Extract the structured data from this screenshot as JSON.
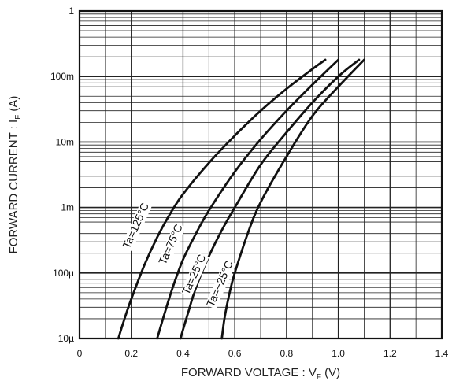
{
  "chart_data": {
    "type": "line",
    "title": "",
    "xlabel": "FORWARD VOLTAGE : V",
    "xlabel_sub": "F",
    "xlabel_unit": " (V)",
    "ylabel": "FORWARD CURRENT : I",
    "ylabel_sub": "F",
    "ylabel_unit": " (A)",
    "xlim": [
      0,
      1.4
    ],
    "ylim": [
      1e-05,
      1
    ],
    "yscale": "log",
    "grid": true,
    "x_ticks": [
      {
        "value": 0,
        "label": "0"
      },
      {
        "value": 0.2,
        "label": "0.2"
      },
      {
        "value": 0.4,
        "label": "0.4"
      },
      {
        "value": 0.6,
        "label": "0.6"
      },
      {
        "value": 0.8,
        "label": "0.8"
      },
      {
        "value": 1.0,
        "label": "1.0"
      },
      {
        "value": 1.2,
        "label": "1.2"
      },
      {
        "value": 1.4,
        "label": "1.4"
      }
    ],
    "y_ticks": [
      {
        "value": 1e-05,
        "label": "10µ"
      },
      {
        "value": 0.0001,
        "label": "100µ"
      },
      {
        "value": 0.001,
        "label": "1m"
      },
      {
        "value": 0.01,
        "label": "10m"
      },
      {
        "value": 0.1,
        "label": "100m"
      },
      {
        "value": 1,
        "label": "1"
      }
    ],
    "series": [
      {
        "name": "Ta=125°C",
        "x": [
          0.15,
          0.17,
          0.2,
          0.25,
          0.3,
          0.35,
          0.4,
          0.5,
          0.6,
          0.7,
          0.8,
          0.9,
          0.95
        ],
        "y": [
          1e-05,
          1.8e-05,
          4e-05,
          0.00013,
          0.00035,
          0.0008,
          0.0016,
          0.0048,
          0.0125,
          0.03,
          0.065,
          0.13,
          0.18
        ]
      },
      {
        "name": "Ta=75°C",
        "x": [
          0.3,
          0.33,
          0.36,
          0.4,
          0.45,
          0.5,
          0.6,
          0.7,
          0.8,
          0.9,
          1.0
        ],
        "y": [
          1e-05,
          2.5e-05,
          6e-05,
          0.00016,
          0.0004,
          0.0009,
          0.0035,
          0.011,
          0.03,
          0.075,
          0.18
        ]
      },
      {
        "name": "Ta=25°C",
        "x": [
          0.39,
          0.42,
          0.45,
          0.5,
          0.55,
          0.6,
          0.7,
          0.8,
          0.9,
          1.0,
          1.08
        ],
        "y": [
          1e-05,
          2.5e-05,
          6e-05,
          0.00018,
          0.00045,
          0.001,
          0.0045,
          0.014,
          0.04,
          0.1,
          0.18
        ]
      },
      {
        "name": "Ta=-25°C",
        "x": [
          0.55,
          0.56,
          0.58,
          0.6,
          0.65,
          0.7,
          0.8,
          0.9,
          1.0,
          1.1
        ],
        "y": [
          1e-05,
          2e-05,
          5e-05,
          0.0001,
          0.0004,
          0.0012,
          0.006,
          0.025,
          0.07,
          0.18
        ]
      }
    ],
    "annotations": [
      {
        "text": "Ta=125°C",
        "x": 0.23,
        "y": 0.0005,
        "angle": -66
      },
      {
        "text": "Ta=75°C",
        "x": 0.365,
        "y": 0.00026,
        "angle": -66
      },
      {
        "text": "Ta=25°C",
        "x": 0.455,
        "y": 9e-05,
        "angle": -66
      },
      {
        "text": "Ta=−25°C",
        "x": 0.555,
        "y": 6.5e-05,
        "angle": -66
      }
    ]
  }
}
